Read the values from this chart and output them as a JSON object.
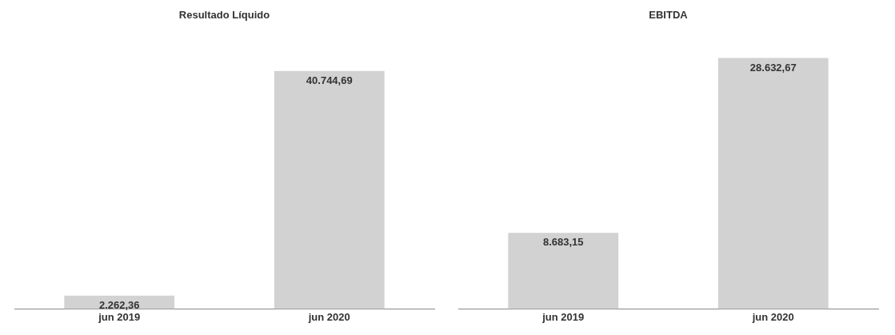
{
  "chart_data": [
    {
      "type": "bar",
      "title": "Resultado Líquido",
      "categories": [
        "jun 2019",
        "jun 2020"
      ],
      "values": [
        2262.36,
        40744.69
      ],
      "value_labels": [
        "2.262,36",
        "40.744,69"
      ],
      "color": "#d2d2d2",
      "grid": false,
      "legend": false,
      "tick_labels": "x"
    },
    {
      "type": "bar",
      "title": "EBITDA",
      "categories": [
        "jun 2019",
        "jun 2020"
      ],
      "values": [
        8683.15,
        28632.67
      ],
      "value_labels": [
        "8.683,15",
        "28.632,67"
      ],
      "color": "#d2d2d2",
      "grid": false,
      "legend": false,
      "tick_labels": "x"
    }
  ]
}
